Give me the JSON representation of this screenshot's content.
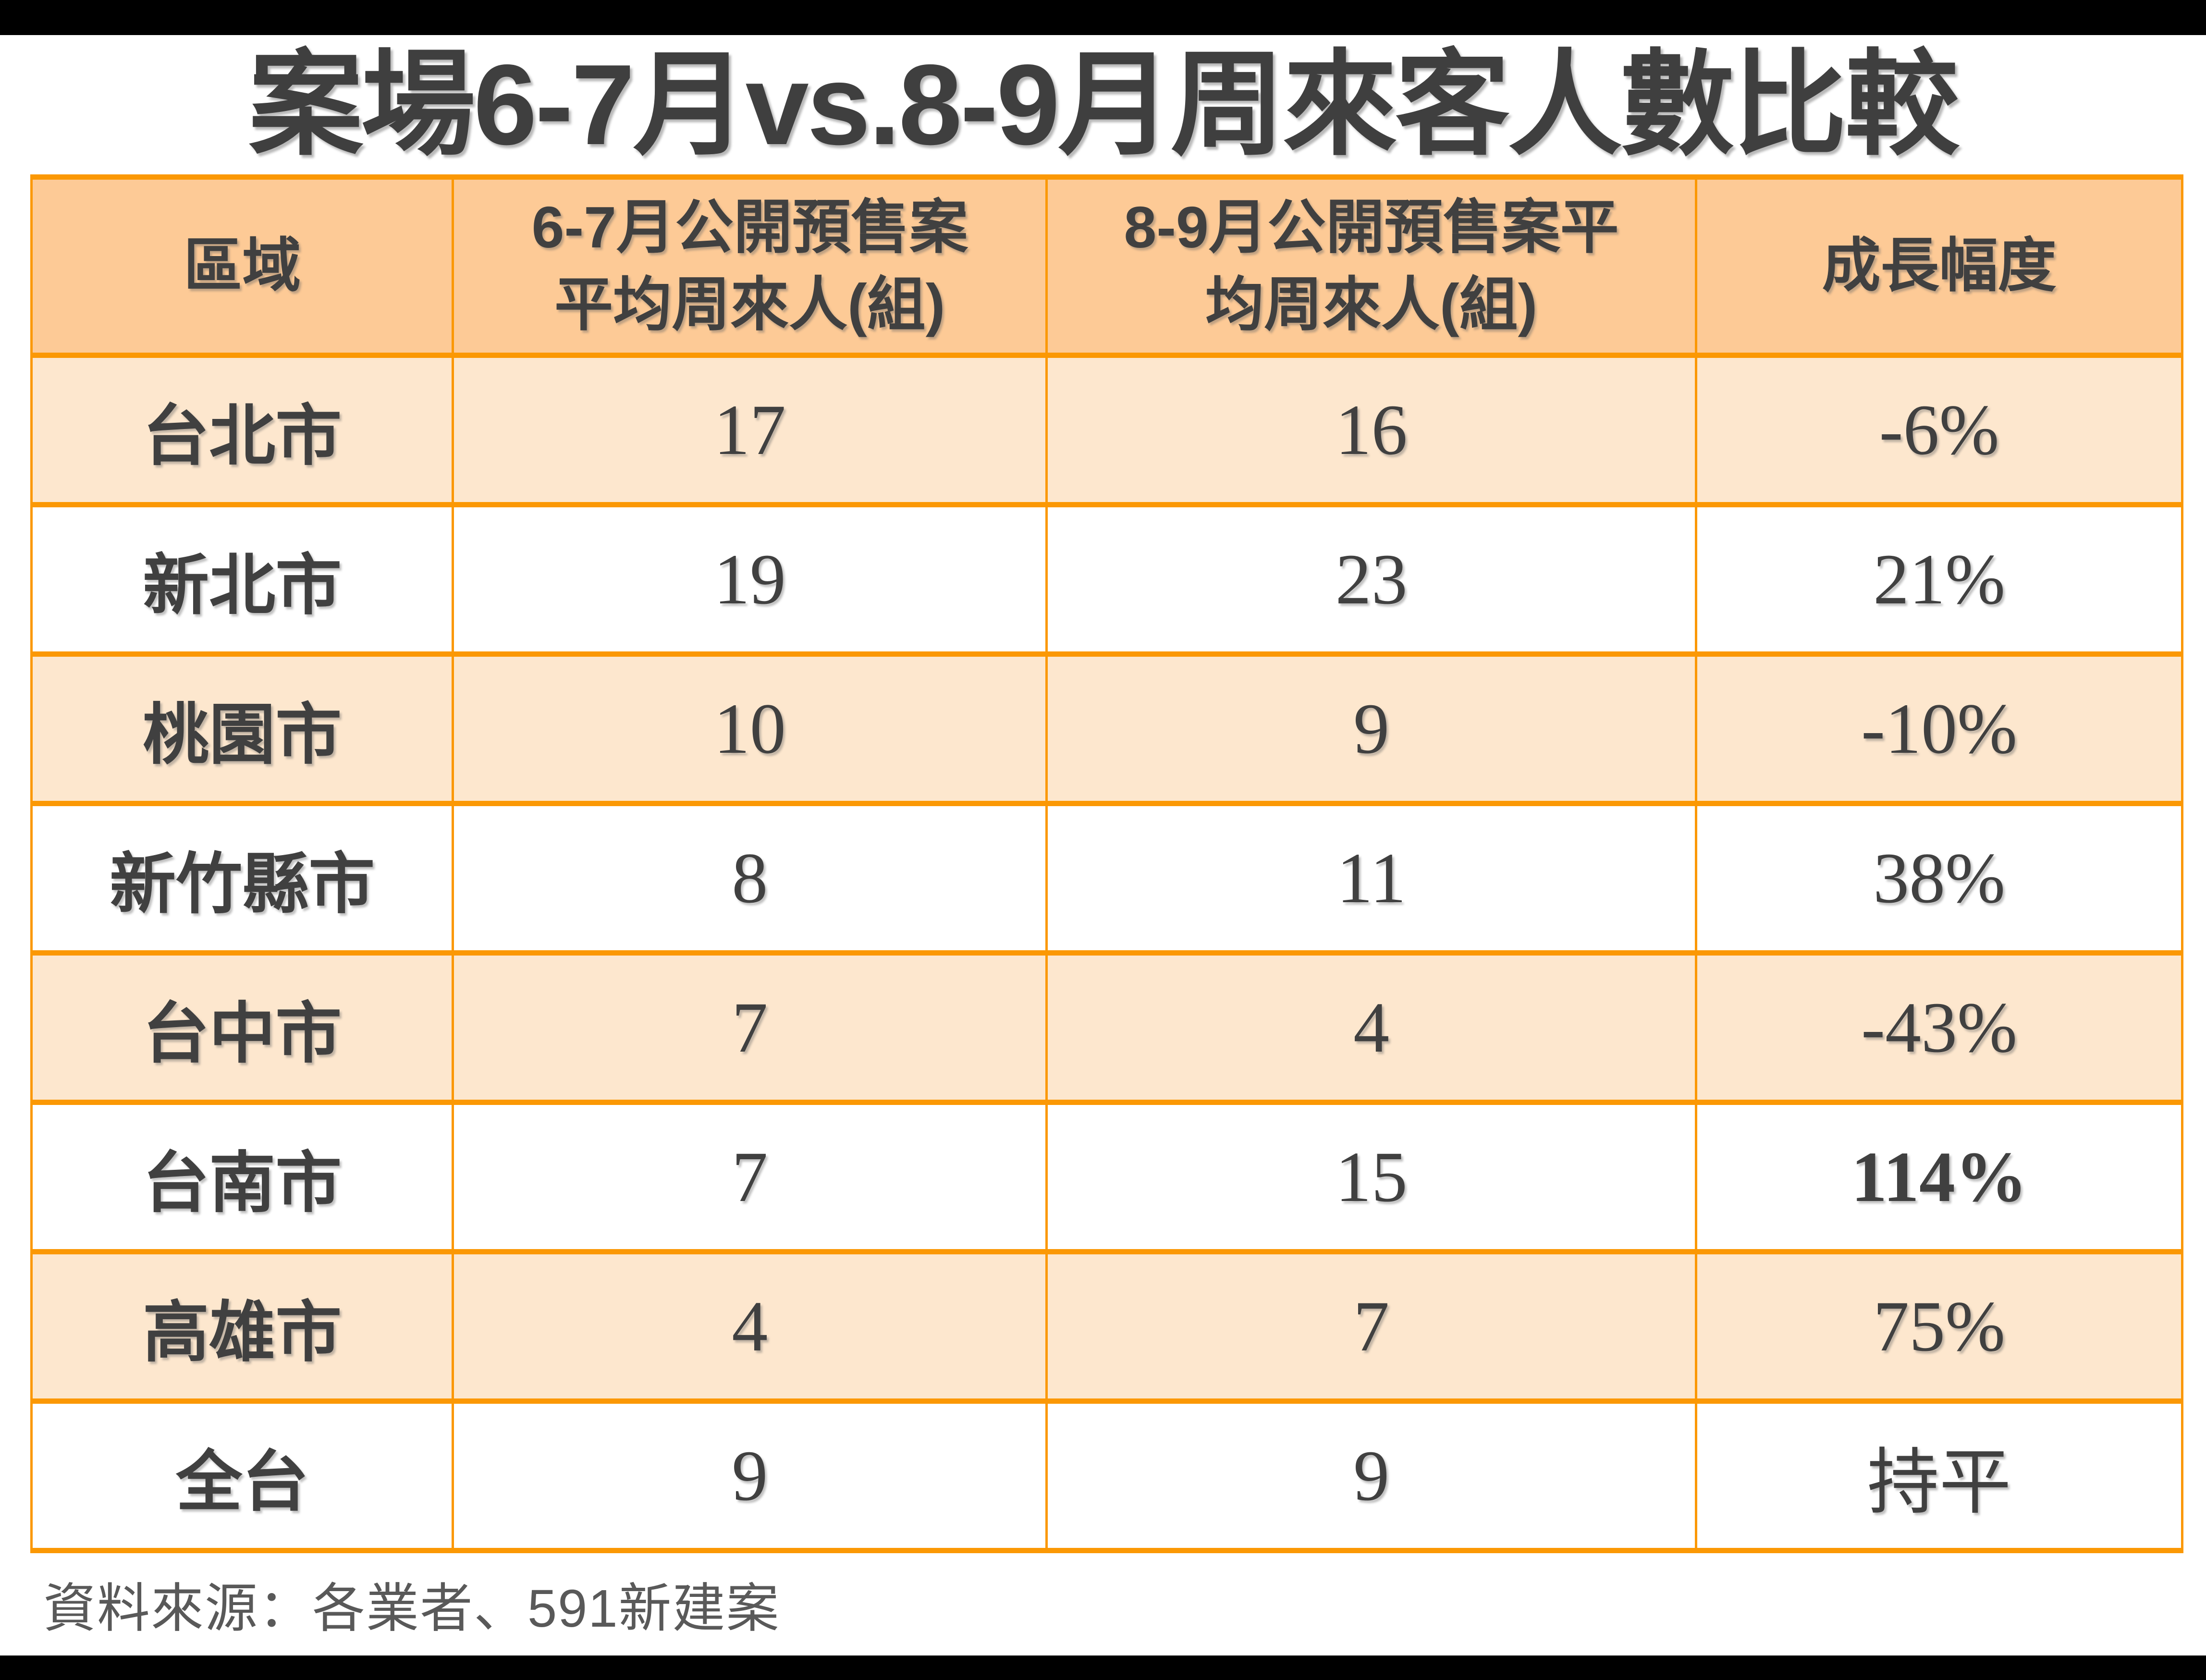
{
  "page": {
    "title": "案場6-7月vs.8-9月周來客人數比較",
    "source_note": "資料來源：各業者、591新建案"
  },
  "colors": {
    "border_orange": "#FB9804",
    "header_bg": "#FDCA96",
    "row_alt_bg": "#FDE7CE",
    "cell_text": "#404040",
    "title_text": "#3F3F3F",
    "source_text": "#595959",
    "letterbox_bars": "#000000"
  },
  "table": {
    "headers": [
      {
        "lines": [
          "區域"
        ]
      },
      {
        "lines": [
          "6-7月公開預售案",
          "平均周來人(組)"
        ]
      },
      {
        "lines": [
          "8-9月公開預售案平",
          "均周來人(組)"
        ]
      },
      {
        "lines": [
          "成長幅度"
        ]
      }
    ],
    "rows": [
      {
        "region": "台北市",
        "jun_jul": "17",
        "aug_sep": "16",
        "growth": "-6%"
      },
      {
        "region": "新北市",
        "jun_jul": "19",
        "aug_sep": "23",
        "growth": "21%"
      },
      {
        "region": "桃園市",
        "jun_jul": "10",
        "aug_sep": "9",
        "growth": "-10%"
      },
      {
        "region": "新竹縣市",
        "jun_jul": "8",
        "aug_sep": "11",
        "growth": "38%"
      },
      {
        "region": "台中市",
        "jun_jul": "7",
        "aug_sep": "4",
        "growth": "-43%"
      },
      {
        "region": "台南市",
        "jun_jul": "7",
        "aug_sep": "15",
        "growth": "114%"
      },
      {
        "region": "高雄市",
        "jun_jul": "4",
        "aug_sep": "7",
        "growth": "75%"
      },
      {
        "region": "全台",
        "jun_jul": "9",
        "aug_sep": "9",
        "growth": "持平"
      }
    ]
  },
  "chart_data": {
    "type": "table",
    "title": "案場6-7月vs.8-9月周來客人數比較",
    "columns": [
      "區域",
      "6-7月公開預售案平均周來人(組)",
      "8-9月公開預售案平均周來人(組)",
      "成長幅度"
    ],
    "rows": [
      [
        "台北市",
        17,
        16,
        "-6%"
      ],
      [
        "新北市",
        19,
        23,
        "21%"
      ],
      [
        "桃園市",
        10,
        9,
        "-10%"
      ],
      [
        "新竹縣市",
        8,
        11,
        "38%"
      ],
      [
        "台中市",
        7,
        4,
        "-43%"
      ],
      [
        "台南市",
        7,
        15,
        "114%"
      ],
      [
        "高雄市",
        4,
        7,
        "75%"
      ],
      [
        "全台",
        9,
        9,
        "持平"
      ]
    ],
    "source": "資料來源：各業者、591新建案"
  }
}
